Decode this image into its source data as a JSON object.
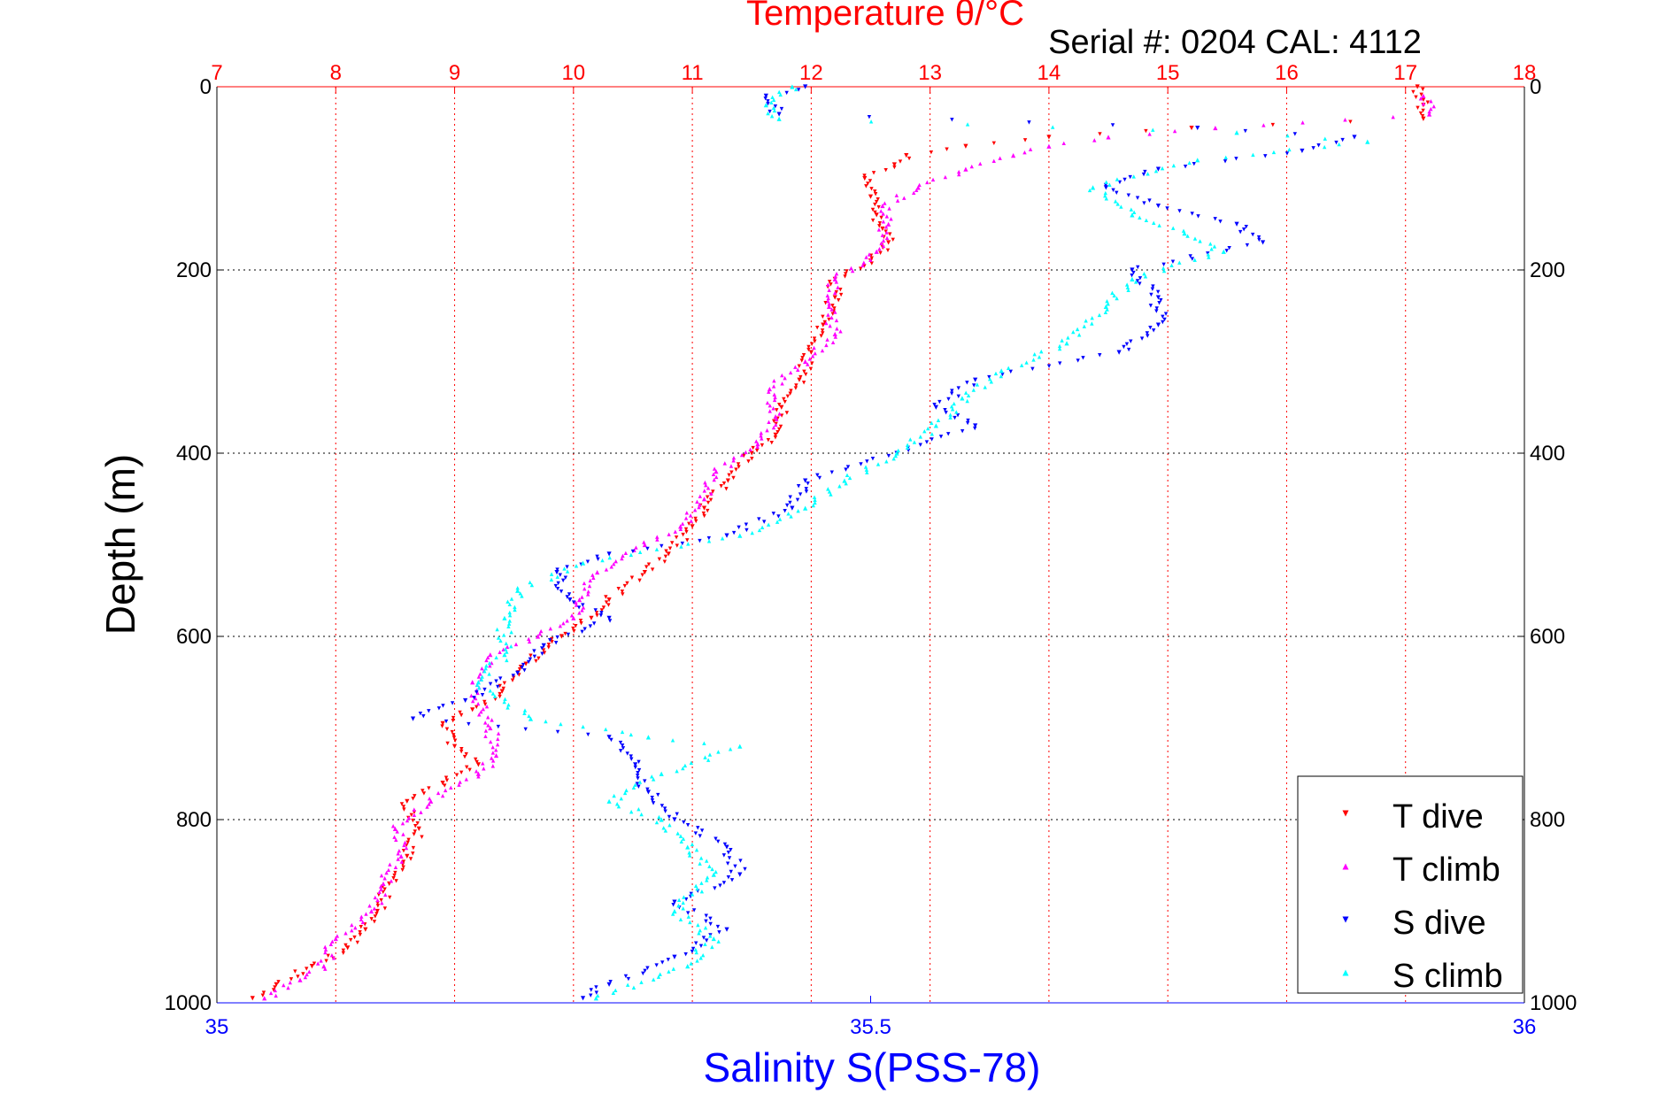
{
  "chart_data": {
    "type": "scatter",
    "title": "Temperature θ/°C",
    "subtitle": "Serial #: 0204  CAL: 4112",
    "ylabel": "Depth (m)",
    "xlabel": "Salinity S(PSS-78)",
    "y_axis": {
      "ylim": [
        0,
        1000
      ],
      "inverted": true,
      "ticks": [
        0,
        200,
        400,
        600,
        800,
        1000
      ]
    },
    "temperature_axis": {
      "position": "top",
      "xlim": [
        7,
        18
      ],
      "ticks": [
        7,
        8,
        9,
        10,
        11,
        12,
        13,
        14,
        15,
        16,
        17,
        18
      ],
      "color": "#ff0000"
    },
    "salinity_axis": {
      "position": "bottom",
      "xlim": [
        35,
        36
      ],
      "ticks": [
        35,
        35.5,
        36
      ],
      "color": "#0000ff"
    },
    "grid": true,
    "legend": {
      "placement": "bottom-right"
    },
    "series": [
      {
        "name": "T dive",
        "axis": "temperature",
        "marker": "triangle-down",
        "color": "#ff0000",
        "points": [
          [
            17.1,
            0
          ],
          [
            17.15,
            20
          ],
          [
            17.15,
            35
          ],
          [
            15.2,
            45
          ],
          [
            14.0,
            55
          ],
          [
            13.3,
            65
          ],
          [
            12.8,
            75
          ],
          [
            12.7,
            85
          ],
          [
            12.45,
            100
          ],
          [
            12.5,
            120
          ],
          [
            12.55,
            140
          ],
          [
            12.6,
            155
          ],
          [
            12.65,
            170
          ],
          [
            12.5,
            190
          ],
          [
            12.2,
            210
          ],
          [
            12.2,
            230
          ],
          [
            12.1,
            260
          ],
          [
            12.0,
            290
          ],
          [
            11.9,
            320
          ],
          [
            11.75,
            350
          ],
          [
            11.7,
            380
          ],
          [
            11.5,
            400
          ],
          [
            11.3,
            430
          ],
          [
            11.1,
            460
          ],
          [
            11.0,
            480
          ],
          [
            10.8,
            510
          ],
          [
            10.6,
            530
          ],
          [
            10.3,
            560
          ],
          [
            10.15,
            580
          ],
          [
            9.9,
            600
          ],
          [
            9.6,
            630
          ],
          [
            9.4,
            660
          ],
          [
            9.15,
            680
          ],
          [
            8.9,
            695
          ],
          [
            9.0,
            720
          ],
          [
            9.2,
            740
          ],
          [
            8.9,
            760
          ],
          [
            8.6,
            780
          ],
          [
            8.7,
            810
          ],
          [
            8.6,
            840
          ],
          [
            8.45,
            870
          ],
          [
            8.35,
            900
          ],
          [
            8.25,
            920
          ],
          [
            8.1,
            940
          ],
          [
            7.8,
            960
          ],
          [
            7.5,
            980
          ],
          [
            7.3,
            995
          ]
        ]
      },
      {
        "name": "T climb",
        "axis": "temperature",
        "marker": "triangle-up",
        "color": "#ff00ff",
        "points": [
          [
            17.15,
            10
          ],
          [
            17.2,
            30
          ],
          [
            15.4,
            45
          ],
          [
            14.5,
            55
          ],
          [
            14.0,
            65
          ],
          [
            13.7,
            75
          ],
          [
            13.3,
            90
          ],
          [
            12.9,
            110
          ],
          [
            12.6,
            130
          ],
          [
            12.65,
            150
          ],
          [
            12.55,
            180
          ],
          [
            12.2,
            210
          ],
          [
            12.15,
            240
          ],
          [
            12.2,
            270
          ],
          [
            11.95,
            300
          ],
          [
            11.65,
            330
          ],
          [
            11.7,
            360
          ],
          [
            11.55,
            390
          ],
          [
            11.2,
            420
          ],
          [
            11.1,
            450
          ],
          [
            10.9,
            480
          ],
          [
            10.6,
            500
          ],
          [
            10.2,
            530
          ],
          [
            10.05,
            560
          ],
          [
            10.0,
            580
          ],
          [
            9.7,
            600
          ],
          [
            9.3,
            620
          ],
          [
            9.15,
            650
          ],
          [
            9.3,
            700
          ],
          [
            9.35,
            730
          ],
          [
            9.2,
            750
          ],
          [
            8.8,
            780
          ],
          [
            8.5,
            810
          ],
          [
            8.55,
            840
          ],
          [
            8.4,
            870
          ],
          [
            8.3,
            900
          ],
          [
            8.0,
            930
          ],
          [
            7.9,
            960
          ],
          [
            7.7,
            975
          ],
          [
            7.4,
            995
          ]
        ]
      },
      {
        "name": "S dive",
        "axis": "salinity",
        "marker": "triangle-down",
        "color": "#0000ff",
        "points": [
          [
            35.45,
            0
          ],
          [
            35.42,
            10
          ],
          [
            35.43,
            30
          ],
          [
            35.75,
            45
          ],
          [
            35.87,
            55
          ],
          [
            35.83,
            70
          ],
          [
            35.72,
            90
          ],
          [
            35.68,
            110
          ],
          [
            35.72,
            130
          ],
          [
            35.78,
            150
          ],
          [
            35.8,
            170
          ],
          [
            35.7,
            200
          ],
          [
            35.72,
            230
          ],
          [
            35.72,
            260
          ],
          [
            35.69,
            290
          ],
          [
            35.58,
            320
          ],
          [
            35.55,
            350
          ],
          [
            35.58,
            370
          ],
          [
            35.52,
            400
          ],
          [
            35.45,
            430
          ],
          [
            35.44,
            460
          ],
          [
            35.39,
            490
          ],
          [
            35.3,
            510
          ],
          [
            35.26,
            530
          ],
          [
            35.27,
            560
          ],
          [
            35.3,
            580
          ],
          [
            35.25,
            610
          ],
          [
            35.23,
            640
          ],
          [
            35.19,
            670
          ],
          [
            35.15,
            690
          ],
          [
            35.3,
            710
          ],
          [
            35.32,
            740
          ],
          [
            35.33,
            770
          ],
          [
            35.35,
            800
          ],
          [
            35.39,
            830
          ],
          [
            35.4,
            860
          ],
          [
            35.35,
            890
          ],
          [
            35.39,
            920
          ],
          [
            35.35,
            950
          ],
          [
            35.3,
            980
          ],
          [
            35.28,
            995
          ]
        ]
      },
      {
        "name": "S climb",
        "axis": "salinity",
        "marker": "triangle-up",
        "color": "#00ffff",
        "points": [
          [
            35.44,
            0
          ],
          [
            35.42,
            20
          ],
          [
            35.43,
            35
          ],
          [
            35.78,
            50
          ],
          [
            35.88,
            60
          ],
          [
            35.75,
            80
          ],
          [
            35.67,
            110
          ],
          [
            35.7,
            140
          ],
          [
            35.74,
            160
          ],
          [
            35.77,
            180
          ],
          [
            35.7,
            210
          ],
          [
            35.68,
            240
          ],
          [
            35.65,
            280
          ],
          [
            35.6,
            310
          ],
          [
            35.57,
            340
          ],
          [
            35.55,
            370
          ],
          [
            35.52,
            400
          ],
          [
            35.48,
            430
          ],
          [
            35.45,
            460
          ],
          [
            35.4,
            490
          ],
          [
            35.28,
            520
          ],
          [
            35.23,
            550
          ],
          [
            35.22,
            580
          ],
          [
            35.22,
            620
          ],
          [
            35.2,
            650
          ],
          [
            35.24,
            690
          ],
          [
            35.33,
            710
          ],
          [
            35.4,
            720
          ],
          [
            35.34,
            750
          ],
          [
            35.3,
            780
          ],
          [
            35.34,
            800
          ],
          [
            35.36,
            830
          ],
          [
            35.38,
            860
          ],
          [
            35.35,
            900
          ],
          [
            35.38,
            930
          ],
          [
            35.36,
            960
          ],
          [
            35.29,
            995
          ]
        ]
      }
    ]
  }
}
